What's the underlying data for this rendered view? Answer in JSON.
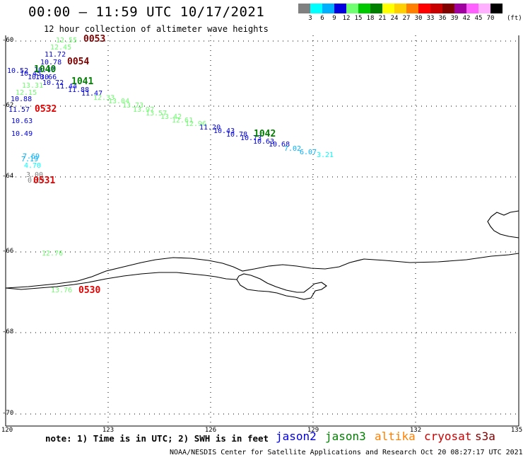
{
  "header": {
    "title": "00:00 – 11:59 UTC 10/17/2021",
    "subtitle": "12 hour collection of altimeter wave heights"
  },
  "scale": {
    "colors": [
      "#808080",
      "#00ffff",
      "#00b0ff",
      "#0000e0",
      "#70ff70",
      "#00c800",
      "#008000",
      "#ffff00",
      "#ffd000",
      "#ff8000",
      "#ff0000",
      "#c80000",
      "#800000",
      "#a000a0",
      "#ff60ff",
      "#ffb0ff",
      "#000000"
    ],
    "labels": [
      "3",
      "6",
      "9",
      "12",
      "15",
      "18",
      "21",
      "24",
      "27",
      "30",
      "33",
      "36",
      "39",
      "42",
      "45",
      "70"
    ],
    "unit": "(ft)"
  },
  "axes": {
    "y_ticks": [
      "-60",
      "-62",
      "-64",
      "-66",
      "-68",
      "-70"
    ],
    "x_ticks": [
      "120",
      "123",
      "126",
      "129",
      "132",
      "135"
    ]
  },
  "observations": [
    {
      "t": "12.55",
      "c": "#70ff70"
    },
    {
      "t": "12.45",
      "c": "#70ff70"
    },
    {
      "t": "11.72",
      "c": "#0000e0"
    },
    {
      "t": "10.78",
      "c": "#0000e0"
    },
    {
      "t": "10.52",
      "c": "#0000e0"
    },
    {
      "t": "10.45",
      "c": "#0000e0"
    },
    {
      "t": "10.40",
      "c": "#0000e0"
    },
    {
      "t": "10.30",
      "c": "#0000e0"
    },
    {
      "t": "10.66",
      "c": "#0000e0"
    },
    {
      "t": "10.72",
      "c": "#0000e0"
    },
    {
      "t": "13.31",
      "c": "#70ff70"
    },
    {
      "t": "11.44",
      "c": "#0000e0"
    },
    {
      "t": "11.88",
      "c": "#0000e0"
    },
    {
      "t": "11.47",
      "c": "#0000e0"
    },
    {
      "t": "12.15",
      "c": "#70ff70"
    },
    {
      "t": "12.33",
      "c": "#70ff70"
    },
    {
      "t": "13.04",
      "c": "#70ff70"
    },
    {
      "t": "13.73",
      "c": "#70ff70"
    },
    {
      "t": "10.88",
      "c": "#0000e0"
    },
    {
      "t": "11.57",
      "c": "#0000e0"
    },
    {
      "t": "13.97",
      "c": "#70ff70"
    },
    {
      "t": "13.57",
      "c": "#70ff70"
    },
    {
      "t": "13.42",
      "c": "#70ff70"
    },
    {
      "t": "12.61",
      "c": "#70ff70"
    },
    {
      "t": "12.96",
      "c": "#70ff70"
    },
    {
      "t": "10.63",
      "c": "#0000e0"
    },
    {
      "t": "11.20",
      "c": "#0000e0"
    },
    {
      "t": "10.43",
      "c": "#0000e0"
    },
    {
      "t": "10.78",
      "c": "#0000e0"
    },
    {
      "t": "10.73",
      "c": "#0000e0"
    },
    {
      "t": "10.63",
      "c": "#0000e0"
    },
    {
      "t": "10.49",
      "c": "#0000e0"
    },
    {
      "t": "10.68",
      "c": "#0000e0"
    },
    {
      "t": "7.02",
      "c": "#00b0ff"
    },
    {
      "t": "6.07",
      "c": "#00b0ff"
    },
    {
      "t": "3.21",
      "c": "#00ffff"
    },
    {
      "t": "7.69",
      "c": "#00b0ff"
    },
    {
      "t": "7.19",
      "c": "#00b0ff"
    },
    {
      "t": "4.70",
      "c": "#00ffff"
    },
    {
      "t": "3.00",
      "c": "#808080"
    },
    {
      "t": "0.69",
      "c": "#808080"
    },
    {
      "t": "12.76",
      "c": "#70ff70"
    },
    {
      "t": "13.76",
      "c": "#70ff70"
    }
  ],
  "pass_labels": [
    {
      "t": "0053",
      "c": "#800000"
    },
    {
      "t": "0054",
      "c": "#800000"
    },
    {
      "t": "1040",
      "c": "#008000"
    },
    {
      "t": "1041",
      "c": "#008000"
    },
    {
      "t": "0532",
      "c": "#e00000"
    },
    {
      "t": "1042",
      "c": "#008000"
    },
    {
      "t": "0531",
      "c": "#e00000"
    },
    {
      "t": "0530",
      "c": "#e00000"
    }
  ],
  "note": "note: 1) Time is in UTC; 2) SWH is in feet",
  "missions": [
    {
      "t": "jason2",
      "c": "#0000e0"
    },
    {
      "t": "jason3",
      "c": "#008000"
    },
    {
      "t": "altika",
      "c": "#ff8000"
    },
    {
      "t": "cryosat",
      "c": "#cc0000"
    },
    {
      "t": "s3a",
      "c": "#800000"
    }
  ],
  "footer": "NOAA/NESDIS Center for Satellite Applications and Research    Oct 20 08:27:17 UTC 2021"
}
